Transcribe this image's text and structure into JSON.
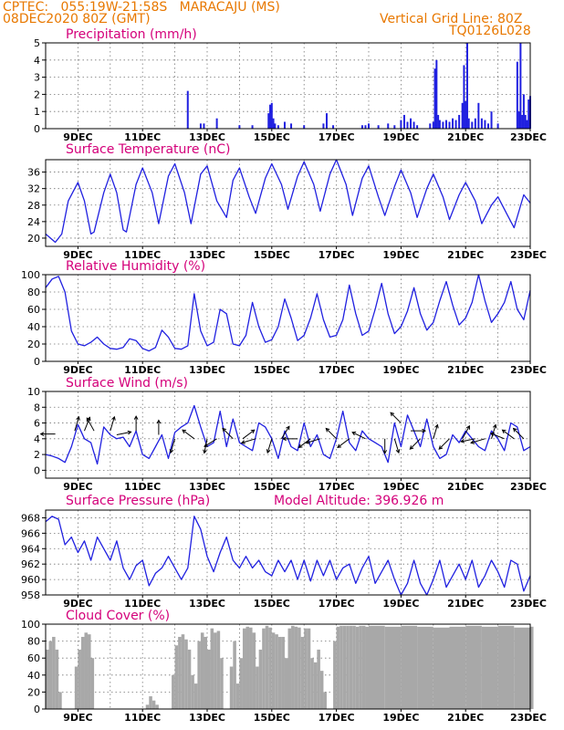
{
  "header": {
    "line1": "CPTEC:   055:19W-21:58S   MARACAJU (MS)",
    "line2_left": "08DEC2020 80Z (GMT)",
    "line2_right": "Vertical Grid Line: 80Z",
    "line3_right": "TQ0126L028"
  },
  "colors": {
    "header": "#e87800",
    "title": "#d4007a",
    "series": "#2020e0",
    "cloud": "#a8a8a8",
    "grid": "#777777"
  },
  "chart_data": [
    {
      "id": "precipitation",
      "type": "bar",
      "title": "Precipitation  (mm/h)",
      "ylim": [
        0,
        5
      ],
      "yticks": [
        0,
        1,
        2,
        3,
        4,
        5
      ],
      "dates": [
        "9DEC",
        "11DEC",
        "13DEC",
        "15DEC",
        "17DEC",
        "19DEC",
        "21DEC",
        "23DEC"
      ],
      "xlim": [
        8.0,
        23.0
      ],
      "x": [
        12.4,
        12.8,
        12.9,
        13.3,
        14.0,
        14.4,
        14.9,
        14.95,
        15.0,
        15.05,
        15.1,
        15.2,
        15.4,
        15.6,
        16.0,
        16.6,
        16.7,
        16.9,
        17.8,
        17.9,
        18.0,
        18.3,
        18.6,
        18.8,
        19.0,
        19.1,
        19.2,
        19.3,
        19.4,
        19.5,
        19.9,
        20.0,
        20.05,
        20.1,
        20.15,
        20.2,
        20.3,
        20.4,
        20.5,
        20.6,
        20.7,
        20.8,
        20.9,
        20.95,
        21.0,
        21.05,
        21.1,
        21.2,
        21.3,
        21.4,
        21.5,
        21.6,
        21.7,
        21.8,
        22.0,
        22.6,
        22.65,
        22.7,
        22.75,
        22.8,
        22.85,
        22.9,
        22.95,
        23.0
      ],
      "values": [
        2.2,
        0.3,
        0.3,
        0.6,
        0.2,
        0.2,
        0.9,
        1.4,
        1.5,
        0.6,
        0.3,
        0.2,
        0.4,
        0.3,
        0.2,
        0.3,
        0.9,
        0.2,
        0.2,
        0.2,
        0.3,
        0.2,
        0.3,
        0.2,
        0.5,
        0.8,
        0.4,
        0.6,
        0.4,
        0.2,
        0.3,
        0.4,
        3.5,
        4.0,
        0.8,
        0.5,
        0.4,
        0.5,
        0.4,
        0.6,
        0.5,
        0.8,
        1.5,
        3.7,
        1.6,
        5.0,
        0.6,
        0.4,
        0.6,
        1.5,
        0.6,
        0.5,
        0.3,
        1.0,
        0.3,
        3.9,
        1.0,
        5.0,
        0.8,
        2.0,
        0.8,
        0.5,
        1.7,
        1.9
      ]
    },
    {
      "id": "temperature",
      "type": "line",
      "title": "Surface Temperature (nC)",
      "ylim": [
        18,
        39
      ],
      "yticks": [
        20,
        24,
        28,
        32,
        36
      ],
      "dates": [
        "9DEC",
        "11DEC",
        "13DEC",
        "15DEC",
        "17DEC",
        "19DEC",
        "21DEC",
        "23DEC"
      ],
      "xlim": [
        8.0,
        23.0
      ],
      "x": [
        8.0,
        8.3,
        8.5,
        8.7,
        9.0,
        9.2,
        9.4,
        9.5,
        9.8,
        10.0,
        10.2,
        10.4,
        10.5,
        10.8,
        11.0,
        11.3,
        11.5,
        11.8,
        12.0,
        12.3,
        12.5,
        12.8,
        13.0,
        13.3,
        13.6,
        13.8,
        14.0,
        14.3,
        14.5,
        14.8,
        15.0,
        15.3,
        15.5,
        15.8,
        16.0,
        16.3,
        16.5,
        16.8,
        17.0,
        17.3,
        17.5,
        17.8,
        18.0,
        18.3,
        18.5,
        18.8,
        19.0,
        19.3,
        19.5,
        19.8,
        20.0,
        20.3,
        20.5,
        20.8,
        21.0,
        21.3,
        21.5,
        21.8,
        22.0,
        22.3,
        22.5,
        22.8,
        23.0
      ],
      "values": [
        21.0,
        19.0,
        21.0,
        29.0,
        33.5,
        29.0,
        21.0,
        21.5,
        31.0,
        35.5,
        31.0,
        22.0,
        21.5,
        33.0,
        37.0,
        31.0,
        23.5,
        35.0,
        38.0,
        31.0,
        23.5,
        35.5,
        37.5,
        29.0,
        25.0,
        34.0,
        37.0,
        30.0,
        26.0,
        34.5,
        38.0,
        33.0,
        27.0,
        35.0,
        38.5,
        33.0,
        26.5,
        35.5,
        39.0,
        33.0,
        25.5,
        34.5,
        37.5,
        30.0,
        25.5,
        32.5,
        36.5,
        31.0,
        25.0,
        32.0,
        35.5,
        30.0,
        24.5,
        30.5,
        33.5,
        29.0,
        23.5,
        28.0,
        30.0,
        25.5,
        22.5,
        30.5,
        28.5
      ]
    },
    {
      "id": "humidity",
      "type": "line",
      "title": "Relative Humidity (%)",
      "ylim": [
        0,
        100
      ],
      "yticks": [
        0,
        20,
        40,
        60,
        80,
        100
      ],
      "dates": [
        "9DEC",
        "11DEC",
        "13DEC",
        "15DEC",
        "17DEC",
        "19DEC",
        "21DEC",
        "23DEC"
      ],
      "xlim": [
        8.0,
        23.0
      ],
      "x": [
        8.0,
        8.2,
        8.4,
        8.6,
        8.8,
        9.0,
        9.2,
        9.4,
        9.6,
        9.8,
        10.0,
        10.2,
        10.4,
        10.6,
        10.8,
        11.0,
        11.2,
        11.4,
        11.6,
        11.8,
        12.0,
        12.2,
        12.4,
        12.6,
        12.8,
        13.0,
        13.2,
        13.4,
        13.6,
        13.8,
        14.0,
        14.2,
        14.4,
        14.6,
        14.8,
        15.0,
        15.2,
        15.4,
        15.6,
        15.8,
        16.0,
        16.2,
        16.4,
        16.6,
        16.8,
        17.0,
        17.2,
        17.4,
        17.6,
        17.8,
        18.0,
        18.2,
        18.4,
        18.6,
        18.8,
        19.0,
        19.2,
        19.4,
        19.6,
        19.8,
        20.0,
        20.2,
        20.4,
        20.6,
        20.8,
        21.0,
        21.2,
        21.4,
        21.6,
        21.8,
        22.0,
        22.2,
        22.4,
        22.6,
        22.8,
        23.0
      ],
      "values": [
        85,
        95,
        98,
        80,
        35,
        20,
        18,
        22,
        28,
        20,
        15,
        14,
        16,
        26,
        24,
        15,
        12,
        16,
        36,
        28,
        15,
        14,
        18,
        78,
        35,
        18,
        22,
        60,
        55,
        20,
        18,
        30,
        68,
        40,
        22,
        25,
        40,
        72,
        50,
        24,
        30,
        50,
        78,
        48,
        28,
        30,
        48,
        88,
        55,
        30,
        35,
        60,
        90,
        55,
        32,
        40,
        58,
        85,
        55,
        36,
        45,
        70,
        92,
        65,
        42,
        50,
        68,
        100,
        70,
        45,
        55,
        68,
        92,
        60,
        48,
        82
      ]
    },
    {
      "id": "wind",
      "type": "line",
      "title": "Surface Wind (m/s)",
      "ylim": [
        -1,
        10
      ],
      "yticks": [
        0,
        2,
        4,
        6,
        8,
        10
      ],
      "dates": [
        "9DEC",
        "11DEC",
        "13DEC",
        "15DEC",
        "17DEC",
        "19DEC",
        "21DEC",
        "23DEC"
      ],
      "xlim": [
        8.0,
        23.0
      ],
      "x": [
        8.0,
        8.2,
        8.4,
        8.6,
        8.8,
        9.0,
        9.2,
        9.4,
        9.6,
        9.8,
        10.0,
        10.2,
        10.4,
        10.6,
        10.8,
        11.0,
        11.2,
        11.4,
        11.6,
        11.8,
        12.0,
        12.2,
        12.4,
        12.6,
        12.8,
        13.0,
        13.2,
        13.4,
        13.6,
        13.8,
        14.0,
        14.2,
        14.4,
        14.6,
        14.8,
        15.0,
        15.2,
        15.4,
        15.6,
        15.8,
        16.0,
        16.2,
        16.4,
        16.6,
        16.8,
        17.0,
        17.2,
        17.4,
        17.6,
        17.8,
        18.0,
        18.2,
        18.4,
        18.6,
        18.8,
        19.0,
        19.2,
        19.4,
        19.6,
        19.8,
        20.0,
        20.2,
        20.4,
        20.6,
        20.8,
        21.0,
        21.2,
        21.4,
        21.6,
        21.8,
        22.0,
        22.2,
        22.4,
        22.6,
        22.8,
        23.0
      ],
      "values": [
        2.0,
        1.8,
        1.5,
        1.0,
        3.0,
        5.8,
        4.0,
        3.5,
        0.8,
        5.5,
        4.5,
        4.0,
        4.2,
        3.0,
        5.0,
        2.0,
        1.5,
        3.0,
        4.5,
        1.5,
        4.8,
        5.5,
        6.0,
        8.2,
        5.5,
        3.0,
        3.5,
        7.5,
        3.0,
        6.5,
        3.5,
        3.0,
        2.5,
        6.0,
        5.5,
        4.0,
        1.5,
        5.0,
        3.0,
        2.5,
        6.0,
        3.0,
        4.5,
        2.0,
        1.5,
        4.0,
        7.5,
        3.5,
        2.5,
        5.0,
        4.0,
        3.5,
        3.0,
        1.0,
        6.0,
        3.0,
        7.0,
        5.0,
        3.0,
        6.5,
        3.0,
        1.5,
        2.0,
        4.5,
        3.5,
        5.0,
        4.0,
        3.0,
        2.5,
        5.0,
        4.0,
        2.5,
        6.0,
        5.5,
        2.5,
        3.0
      ],
      "arrows": [
        {
          "x": 8.3,
          "y": 4.6,
          "dx": -1,
          "dy": 0
        },
        {
          "x": 8.9,
          "y": 5.0,
          "dx": 0.3,
          "dy": 1
        },
        {
          "x": 9.2,
          "y": 5.0,
          "dx": 0.4,
          "dy": 1
        },
        {
          "x": 9.5,
          "y": 5.0,
          "dx": -0.5,
          "dy": 0.9
        },
        {
          "x": 10.0,
          "y": 5.0,
          "dx": 0.3,
          "dy": 1
        },
        {
          "x": 10.2,
          "y": 4.5,
          "dx": 1,
          "dy": 0.2
        },
        {
          "x": 10.8,
          "y": 5.0,
          "dx": 0,
          "dy": 1
        },
        {
          "x": 11.5,
          "y": 4.5,
          "dx": 0,
          "dy": 1
        },
        {
          "x": 12.0,
          "y": 4.0,
          "dx": -0.3,
          "dy": -1
        },
        {
          "x": 12.6,
          "y": 4.0,
          "dx": -0.8,
          "dy": 0.6
        },
        {
          "x": 13.0,
          "y": 4.0,
          "dx": -0.2,
          "dy": -1
        },
        {
          "x": 13.3,
          "y": 4.0,
          "dx": -0.8,
          "dy": -0.5
        },
        {
          "x": 13.8,
          "y": 4.0,
          "dx": -0.7,
          "dy": 0.7
        },
        {
          "x": 14.1,
          "y": 4.0,
          "dx": 0.8,
          "dy": 0.6
        },
        {
          "x": 14.5,
          "y": 4.0,
          "dx": -1,
          "dy": -0.3
        },
        {
          "x": 15.0,
          "y": 4.0,
          "dx": -0.3,
          "dy": -1
        },
        {
          "x": 15.3,
          "y": 4.0,
          "dx": 0.5,
          "dy": 0.8
        },
        {
          "x": 15.8,
          "y": 4.0,
          "dx": -1,
          "dy": 0
        },
        {
          "x": 16.2,
          "y": 4.0,
          "dx": -0.8,
          "dy": -0.6
        },
        {
          "x": 16.5,
          "y": 4.0,
          "dx": -1,
          "dy": -0.3
        },
        {
          "x": 17.0,
          "y": 4.0,
          "dx": -0.7,
          "dy": 0.7
        },
        {
          "x": 17.4,
          "y": 4.0,
          "dx": -0.8,
          "dy": -0.6
        },
        {
          "x": 17.9,
          "y": 4.0,
          "dx": -0.8,
          "dy": 0.4
        },
        {
          "x": 18.5,
          "y": 4.0,
          "dx": 0,
          "dy": -1
        },
        {
          "x": 18.8,
          "y": 4.0,
          "dx": 0.3,
          "dy": -1
        },
        {
          "x": 19.0,
          "y": 6.0,
          "dx": -0.7,
          "dy": 0.7
        },
        {
          "x": 19.3,
          "y": 5.0,
          "dx": 1,
          "dy": 0
        },
        {
          "x": 19.6,
          "y": 4.0,
          "dx": -0.7,
          "dy": -0.7
        },
        {
          "x": 20.0,
          "y": 4.0,
          "dx": 0.3,
          "dy": 1
        },
        {
          "x": 20.5,
          "y": 4.0,
          "dx": -0.7,
          "dy": -0.7
        },
        {
          "x": 20.9,
          "y": 4.0,
          "dx": 0.5,
          "dy": 0.9
        },
        {
          "x": 21.3,
          "y": 4.0,
          "dx": -1,
          "dy": -0.2
        },
        {
          "x": 21.6,
          "y": 4.0,
          "dx": -1,
          "dy": -0.3
        },
        {
          "x": 21.8,
          "y": 4.0,
          "dx": 0.3,
          "dy": 1
        },
        {
          "x": 22.2,
          "y": 4.0,
          "dx": -1,
          "dy": 0.4
        },
        {
          "x": 22.5,
          "y": 4.0,
          "dx": -0.8,
          "dy": 0.6
        },
        {
          "x": 22.8,
          "y": 4.0,
          "dx": -0.7,
          "dy": 0.7
        }
      ]
    },
    {
      "id": "pressure",
      "type": "line",
      "title": "Surface Pressure (hPa)",
      "annotation": "Model Altitude: 396.926 m",
      "ylim": [
        958,
        969
      ],
      "yticks": [
        958,
        960,
        962,
        964,
        966,
        968
      ],
      "dates": [
        "9DEC",
        "11DEC",
        "13DEC",
        "15DEC",
        "17DEC",
        "19DEC",
        "21DEC",
        "23DEC"
      ],
      "xlim": [
        8.0,
        23.0
      ],
      "x": [
        8.0,
        8.2,
        8.4,
        8.6,
        8.8,
        9.0,
        9.2,
        9.4,
        9.6,
        9.8,
        10.0,
        10.2,
        10.4,
        10.6,
        10.8,
        11.0,
        11.2,
        11.4,
        11.6,
        11.8,
        12.0,
        12.2,
        12.4,
        12.6,
        12.8,
        13.0,
        13.2,
        13.4,
        13.6,
        13.8,
        14.0,
        14.2,
        14.4,
        14.6,
        14.8,
        15.0,
        15.2,
        15.4,
        15.6,
        15.8,
        16.0,
        16.2,
        16.4,
        16.6,
        16.8,
        17.0,
        17.2,
        17.4,
        17.6,
        17.8,
        18.0,
        18.2,
        18.4,
        18.6,
        18.8,
        19.0,
        19.2,
        19.4,
        19.6,
        19.8,
        20.0,
        20.2,
        20.4,
        20.6,
        20.8,
        21.0,
        21.2,
        21.4,
        21.6,
        21.8,
        22.0,
        22.2,
        22.4,
        22.6,
        22.8,
        23.0
      ],
      "values": [
        967.5,
        968.2,
        967.8,
        964.5,
        965.5,
        963.5,
        965.0,
        962.5,
        965.5,
        964.0,
        962.5,
        965.0,
        961.5,
        960.0,
        961.8,
        962.5,
        959.2,
        960.8,
        961.5,
        963.0,
        961.5,
        960.0,
        961.5,
        968.2,
        966.5,
        963.0,
        961.0,
        963.5,
        965.5,
        962.5,
        961.5,
        963.0,
        961.5,
        962.5,
        961.0,
        960.5,
        962.5,
        961.0,
        962.5,
        960.0,
        962.5,
        959.8,
        962.5,
        960.5,
        962.5,
        960.0,
        961.5,
        962.0,
        959.5,
        961.5,
        963.0,
        959.5,
        961.0,
        962.5,
        960.0,
        958.0,
        959.5,
        962.5,
        959.5,
        958.0,
        960.0,
        962.5,
        959.0,
        960.5,
        962.0,
        960.0,
        962.5,
        959.0,
        960.5,
        962.5,
        961.0,
        959.0,
        962.5,
        962.0,
        958.5,
        960.5
      ]
    },
    {
      "id": "cloud",
      "type": "area",
      "title": "Cloud Cover (%)",
      "ylim": [
        0,
        100
      ],
      "yticks": [
        0,
        20,
        40,
        60,
        80,
        100
      ],
      "dates": [
        "9DEC",
        "11DEC",
        "13DEC",
        "15DEC",
        "17DEC",
        "19DEC",
        "21DEC",
        "23DEC"
      ],
      "xlim": [
        8.0,
        23.0
      ],
      "x": [
        8.0,
        8.1,
        8.2,
        8.3,
        8.4,
        8.5,
        8.6,
        8.7,
        8.8,
        8.9,
        9.0,
        9.1,
        9.2,
        9.3,
        9.4,
        9.5,
        9.6,
        9.7,
        9.8,
        9.9,
        10.0,
        10.1,
        10.2,
        10.3,
        10.4,
        10.5,
        10.6,
        10.7,
        10.8,
        10.9,
        11.0,
        11.1,
        11.2,
        11.3,
        11.4,
        11.5,
        11.6,
        11.7,
        11.8,
        11.9,
        12.0,
        12.1,
        12.2,
        12.3,
        12.4,
        12.5,
        12.6,
        12.7,
        12.8,
        12.9,
        13.0,
        13.1,
        13.2,
        13.3,
        13.4,
        13.5,
        13.6,
        13.7,
        13.8,
        13.9,
        14.0,
        14.1,
        14.2,
        14.3,
        14.4,
        14.5,
        14.6,
        14.7,
        14.8,
        14.9,
        15.0,
        15.1,
        15.2,
        15.3,
        15.4,
        15.5,
        15.6,
        15.7,
        15.8,
        15.9,
        16.0,
        16.1,
        16.2,
        16.3,
        16.4,
        16.5,
        16.6,
        16.7,
        16.8,
        16.9,
        17.0,
        17.1,
        17.2,
        17.3,
        17.4,
        17.5,
        17.6,
        17.7,
        17.8,
        17.9,
        18.0,
        18.5,
        19.0,
        19.5,
        20.0,
        20.5,
        21.0,
        21.5,
        22.0,
        22.5,
        23.0
      ],
      "values": [
        70,
        80,
        85,
        70,
        20,
        0,
        0,
        0,
        0,
        50,
        70,
        85,
        90,
        88,
        60,
        0,
        0,
        0,
        0,
        0,
        0,
        0,
        0,
        0,
        0,
        0,
        0,
        0,
        0,
        0,
        0,
        5,
        15,
        10,
        5,
        0,
        0,
        0,
        0,
        40,
        75,
        85,
        88,
        82,
        70,
        40,
        30,
        80,
        90,
        85,
        70,
        95,
        90,
        92,
        60,
        0,
        0,
        50,
        80,
        30,
        60,
        95,
        97,
        96,
        90,
        50,
        70,
        95,
        98,
        96,
        90,
        88,
        85,
        85,
        60,
        95,
        98,
        97,
        96,
        85,
        95,
        95,
        60,
        55,
        70,
        45,
        20,
        0,
        0,
        80,
        97,
        98,
        98,
        98,
        98,
        98,
        97,
        98,
        98,
        97,
        98,
        97,
        98,
        97,
        96,
        97,
        98,
        97,
        98,
        96,
        97
      ]
    }
  ]
}
